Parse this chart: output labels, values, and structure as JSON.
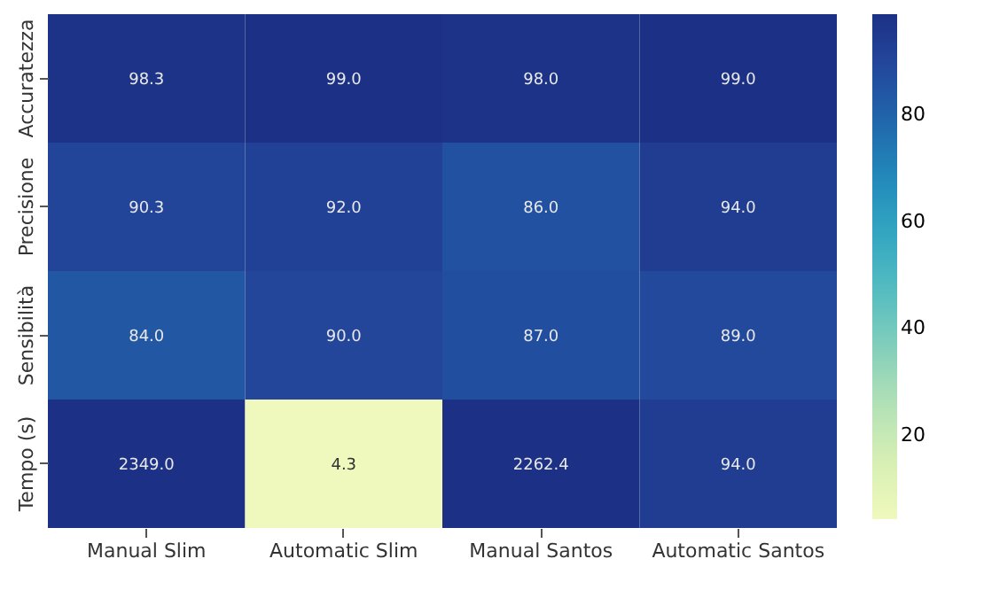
{
  "chart_data": {
    "type": "heatmap",
    "categories": [
      "Manual   Slim",
      "Automatic   Slim",
      "Manual   Santos",
      "Automatic   Santos"
    ],
    "y_categories": [
      "Accuratezza",
      "Precisione",
      "Sensibilità",
      "Tempo (s)"
    ],
    "cells": [
      [
        98.3,
        99.0,
        98.0,
        99.0
      ],
      [
        90.3,
        92.0,
        86.0,
        94.0
      ],
      [
        84.0,
        90.0,
        87.0,
        89.0
      ],
      [
        2349.0,
        4.3,
        2262.4,
        94.0
      ]
    ],
    "cell_labels": [
      [
        "98.3",
        "99.0",
        "98.0",
        "99.0"
      ],
      [
        "90.3",
        "92.0",
        "86.0",
        "94.0"
      ],
      [
        "84.0",
        "90.0",
        "87.0",
        "89.0"
      ],
      [
        "2349.0",
        "4.3",
        "2262.4",
        "94.0"
      ]
    ],
    "clim": [
      4.3,
      99.0
    ],
    "cticks": [
      20,
      40,
      60,
      80
    ]
  }
}
